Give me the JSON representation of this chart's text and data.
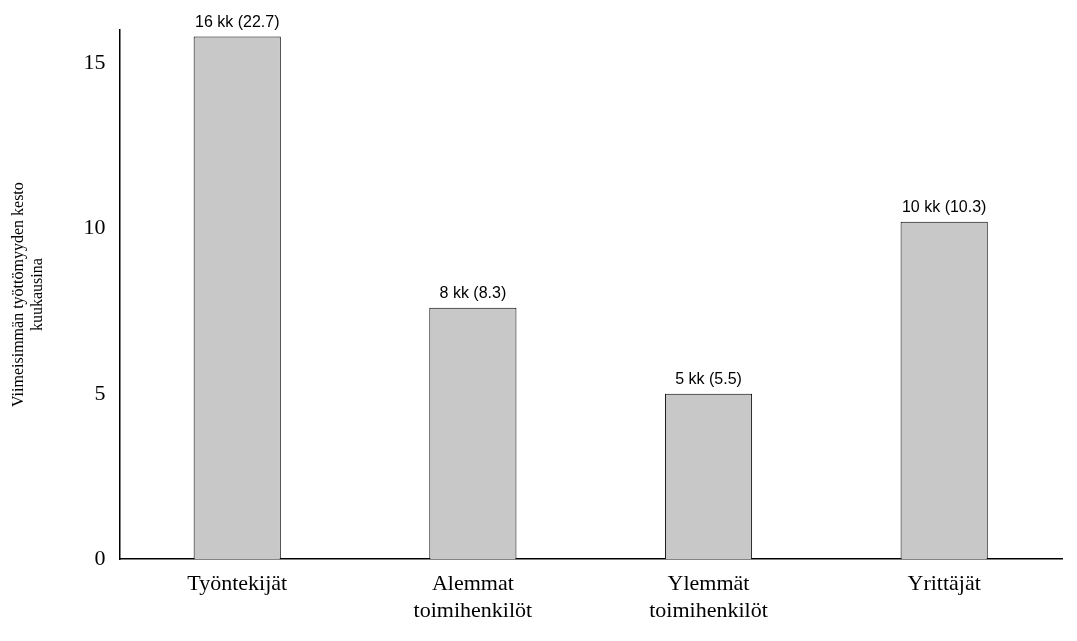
{
  "chart_data": {
    "type": "bar",
    "ylabel": "Viimeisimmän työttömyyden kesto kuukausina",
    "categories": [
      "Työntekijät",
      "Alemmat toimihenkilöt",
      "Ylemmät toimihenkilöt",
      "Yrittäjät"
    ],
    "values": [
      15.8,
      7.6,
      5.0,
      10.2
    ],
    "value_labels": [
      "16 kk (22.7)",
      "8 kk (8.3)",
      "5 kk (5.5)",
      "10 kk (10.3)"
    ],
    "color": "#c8c8c8",
    "ylim": [
      0,
      16
    ],
    "yticks": [
      0,
      5,
      10,
      15
    ],
    "grid": false,
    "legend": false
  }
}
